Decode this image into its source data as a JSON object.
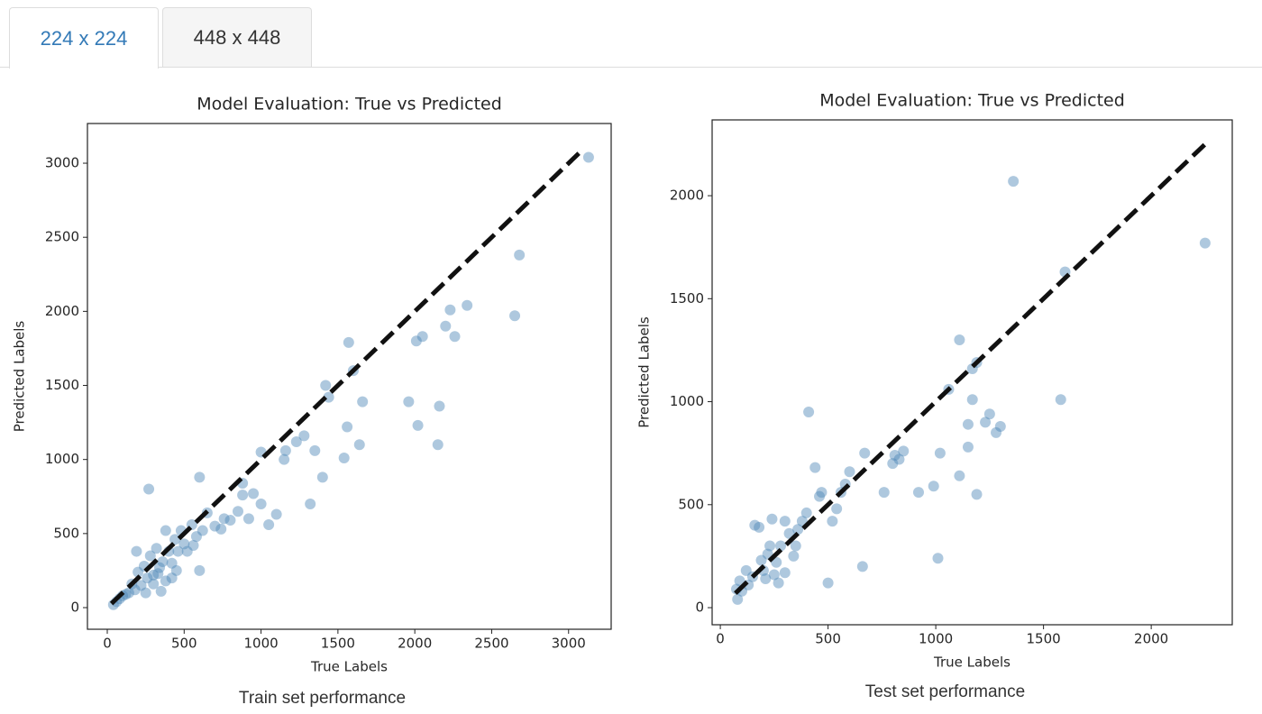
{
  "tabs": [
    "224 x 224",
    "448 x 448"
  ],
  "chart_data": [
    {
      "type": "scatter",
      "title": "Model Evaluation: True vs Predicted",
      "xlabel": "True Labels",
      "ylabel": "Predicted Labels",
      "caption": "Train set performance",
      "color": "#4c84b6",
      "x": [
        3130,
        2680,
        2650,
        2340,
        2230,
        2260,
        2200,
        2160,
        2150,
        2050,
        2010,
        2020,
        1960,
        1660,
        1640,
        1600,
        1570,
        1560,
        1540,
        1420,
        1440,
        1400,
        1350,
        1320,
        1280,
        1230,
        1160,
        1100,
        1150,
        1050,
        1000,
        950,
        920,
        1000,
        880,
        880,
        850,
        800,
        760,
        740,
        700,
        650,
        600,
        620,
        580,
        550,
        500,
        480,
        460,
        440,
        420,
        400,
        380,
        360,
        340,
        320,
        300,
        280,
        270,
        260,
        240,
        220,
        200,
        190,
        180,
        160,
        140,
        120,
        100,
        80,
        60,
        40,
        350,
        450,
        520,
        560,
        600,
        300,
        250,
        420,
        380,
        330
      ],
      "y": [
        3040,
        2380,
        1970,
        2040,
        2010,
        1830,
        1900,
        1360,
        1100,
        1830,
        1800,
        1230,
        1390,
        1390,
        1100,
        1600,
        1790,
        1220,
        1010,
        1500,
        1420,
        880,
        1060,
        700,
        1160,
        1120,
        1060,
        630,
        1000,
        560,
        1050,
        770,
        600,
        700,
        760,
        840,
        650,
        590,
        600,
        530,
        550,
        640,
        880,
        520,
        480,
        560,
        430,
        520,
        380,
        460,
        300,
        380,
        520,
        310,
        270,
        400,
        220,
        350,
        800,
        200,
        280,
        150,
        240,
        380,
        120,
        160,
        100,
        90,
        80,
        60,
        40,
        20,
        110,
        250,
        380,
        420,
        250,
        160,
        100,
        200,
        180,
        230
      ],
      "reference_line": {
        "x": [
          27,
          3100
        ],
        "y": [
          27,
          3100
        ]
      },
      "xlim": [
        -129,
        3277
      ],
      "ylim": [
        -146,
        3268
      ],
      "xticks": [
        0,
        500,
        1000,
        1500,
        2000,
        2500,
        3000
      ],
      "yticks": [
        0,
        500,
        1000,
        1500,
        2000,
        2500,
        3000
      ]
    },
    {
      "type": "scatter",
      "title": "Model Evaluation: True vs Predicted",
      "xlabel": "True Labels",
      "ylabel": "Predicted Labels",
      "caption": "Test set performance",
      "color": "#4c84b6",
      "x": [
        2250,
        1360,
        1600,
        1580,
        1190,
        1170,
        1110,
        1190,
        1250,
        1230,
        1280,
        1300,
        1170,
        1150,
        1150,
        1110,
        1060,
        1020,
        1010,
        990,
        920,
        850,
        830,
        800,
        810,
        760,
        670,
        660,
        600,
        580,
        560,
        540,
        520,
        500,
        470,
        460,
        440,
        410,
        400,
        380,
        360,
        350,
        320,
        300,
        280,
        260,
        240,
        220,
        200,
        180,
        160,
        150,
        130,
        120,
        100,
        90,
        80,
        75,
        250,
        210,
        190,
        300,
        340,
        270,
        230
      ],
      "y": [
        1770,
        2070,
        1630,
        1010,
        1190,
        1160,
        1300,
        550,
        940,
        900,
        850,
        880,
        1010,
        890,
        780,
        640,
        1060,
        750,
        240,
        590,
        560,
        760,
        720,
        700,
        740,
        560,
        750,
        200,
        660,
        600,
        560,
        480,
        420,
        120,
        560,
        540,
        680,
        950,
        460,
        420,
        380,
        300,
        360,
        420,
        300,
        220,
        430,
        260,
        180,
        390,
        400,
        150,
        110,
        180,
        80,
        130,
        40,
        90,
        160,
        140,
        230,
        170,
        250,
        120,
        300
      ],
      "reference_line": {
        "x": [
          70,
          2250
        ],
        "y": [
          70,
          2250
        ]
      },
      "xlim": [
        -38,
        2376
      ],
      "ylim": [
        -83,
        2368
      ],
      "xticks": [
        0,
        500,
        1000,
        1500,
        2000
      ],
      "yticks": [
        0,
        500,
        1000,
        1500,
        2000
      ]
    }
  ]
}
